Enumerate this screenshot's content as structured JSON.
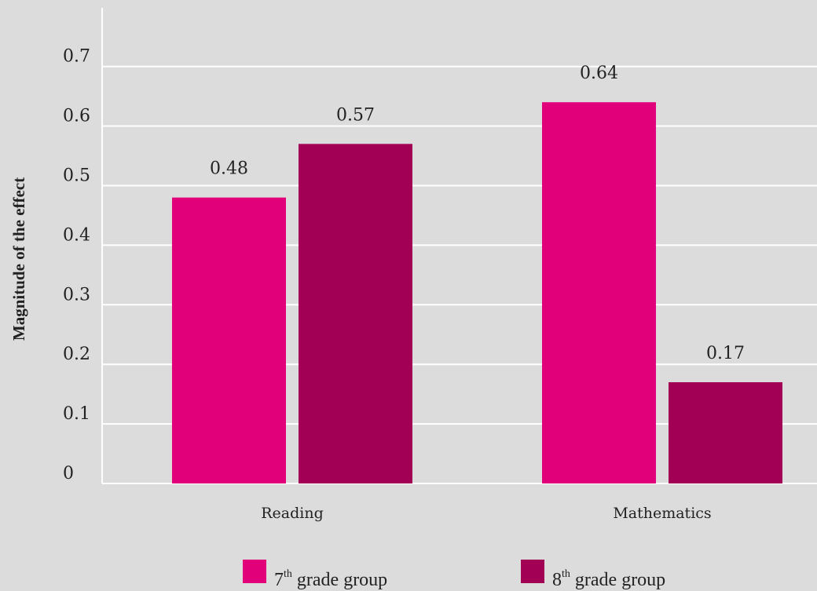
{
  "chart_data": {
    "type": "bar",
    "categories": [
      "Reading",
      "Mathematics"
    ],
    "series": [
      {
        "name": "7th grade group",
        "name_base": "7",
        "name_sup": "th",
        "name_rest": " grade group",
        "values": [
          0.48,
          0.64
        ],
        "color": "#e2007a"
      },
      {
        "name": "8th grade group",
        "name_base": "8",
        "name_sup": "th",
        "name_rest": " grade group",
        "values": [
          0.57,
          0.17
        ],
        "color": "#a20055"
      }
    ],
    "data_labels": [
      [
        "0.48",
        "0.64"
      ],
      [
        "0.57",
        "0.17"
      ]
    ],
    "ylabel": "Magnitude of the effect",
    "xlabel": "",
    "ylim": [
      0,
      0.7
    ],
    "yticks": [
      0,
      0.1,
      0.2,
      0.3,
      0.4,
      0.5,
      0.6,
      0.7
    ],
    "ytick_labels": [
      "0",
      "0.1",
      "0.2",
      "0.3",
      "0.4",
      "0.5",
      "0.6",
      "0.7"
    ],
    "grid": true,
    "grid_color": "#ffffff",
    "background": "#dcdcdc",
    "legend_position": "bottom"
  }
}
